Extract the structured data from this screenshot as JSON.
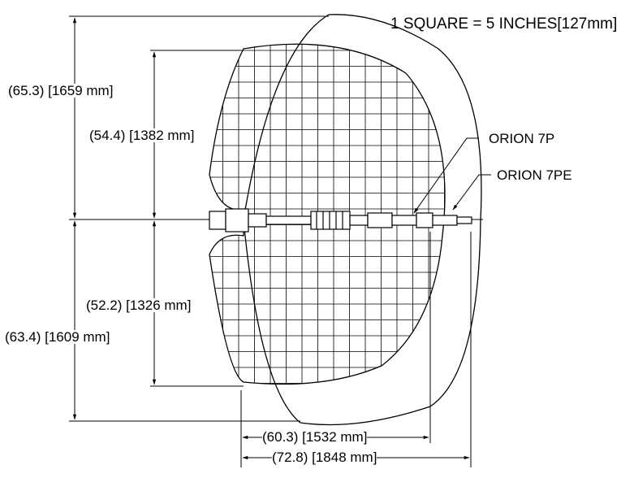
{
  "scale_note": "1 SQUARE = 5 INCHES[127mm]",
  "dimensions": {
    "outer_upper": "(65.3) [1659 mm]",
    "inner_upper": "(54.4) [1382 mm]",
    "inner_lower": "(52.2) [1326 mm]",
    "outer_lower": "(63.4) [1609 mm]",
    "reach_inner": "(60.3) [1532 mm]",
    "reach_outer": "(72.8) [1848 mm]"
  },
  "callouts": {
    "model_a": "ORION 7P",
    "model_b": "ORION 7PE"
  }
}
